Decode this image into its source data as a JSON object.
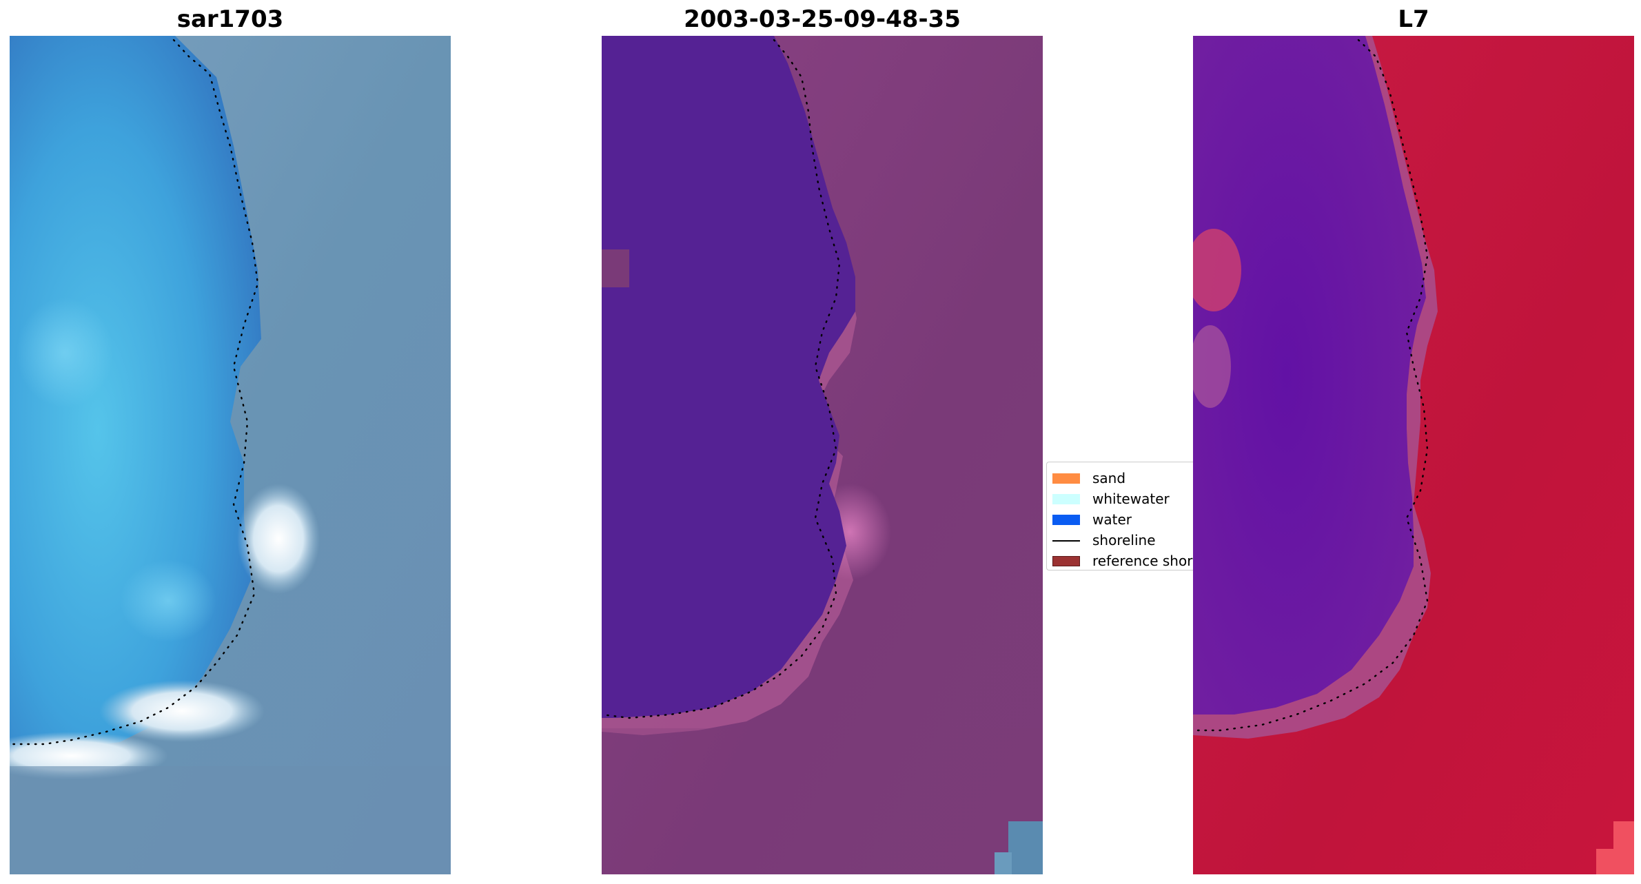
{
  "panels": [
    {
      "title": "sar1703",
      "colors": {
        "deep": "#3b8fd4",
        "mid": "#4ab8e3",
        "land": "#6b96b5",
        "surf": "#f2f7fb"
      }
    },
    {
      "title": "2003-03-25-09-48-35",
      "colors": {
        "water": "#552294",
        "land": "#7a3a78",
        "edge": "#b25a9b"
      }
    },
    {
      "title": "L7",
      "colors": {
        "water": "#6a1aa0",
        "land": "#c4143d",
        "edge": "#b4508f"
      }
    }
  ],
  "legend": {
    "items": [
      {
        "label": "sand",
        "color": "#ff8c42",
        "kind": "patch"
      },
      {
        "label": "whitewater",
        "color": "#ccffff",
        "kind": "patch"
      },
      {
        "label": "water",
        "color": "#0a5cf2",
        "kind": "patch"
      },
      {
        "label": "shoreline",
        "color": "#000000",
        "kind": "line"
      },
      {
        "label": "reference shoreline",
        "color": "#9b3232",
        "kind": "patch"
      }
    ]
  }
}
